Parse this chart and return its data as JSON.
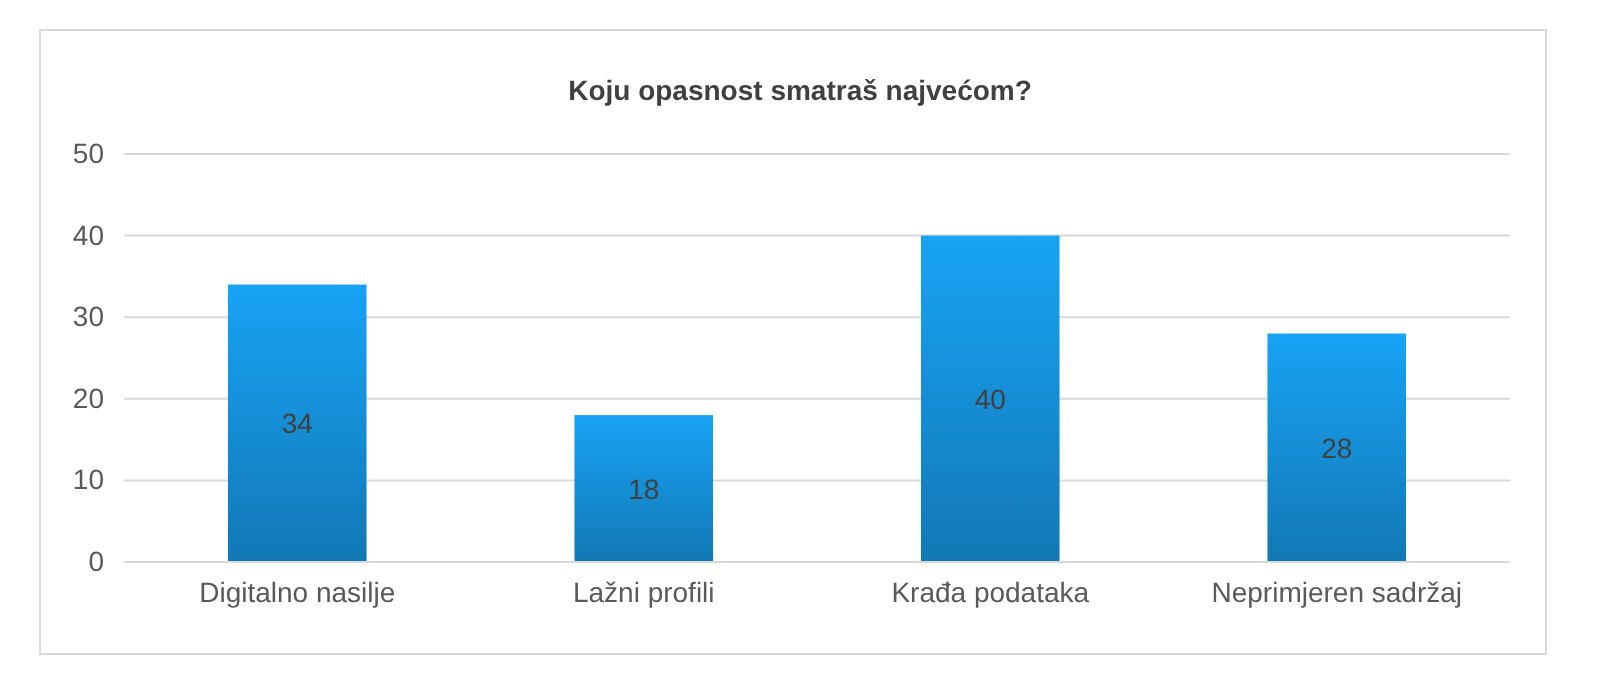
{
  "chart_data": {
    "type": "bar",
    "title": "Koju opasnost smatraš najvećom?",
    "categories": [
      "Digitalno nasilje",
      "Lažni profili",
      "Krađa podataka",
      "Neprimjeren sadržaj"
    ],
    "values": [
      34,
      18,
      40,
      28
    ],
    "color": "#1590d8",
    "ylim": [
      0,
      50
    ],
    "yticks": [
      0,
      10,
      20,
      30,
      40,
      50
    ],
    "grid": "y",
    "data_labels": true
  }
}
